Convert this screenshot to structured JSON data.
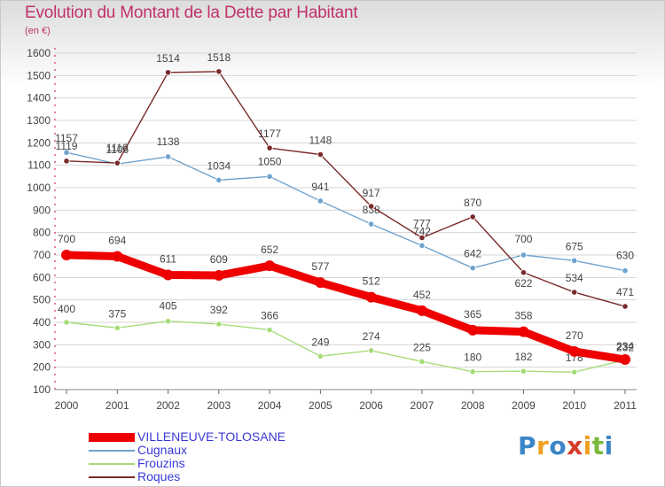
{
  "header": {
    "title": "Evolution du Montant de la Dette par Habitant",
    "subtitle": "(en €)"
  },
  "logo": {
    "letters": [
      "P",
      "r",
      "o",
      "x",
      "i",
      "t",
      "i"
    ],
    "colors": [
      "#3b86c8",
      "#f0a020",
      "#3b86c8",
      "#d63a2a",
      "#f0a020",
      "#78b83a",
      "#3b86c8"
    ]
  },
  "chart_data": {
    "type": "line",
    "x": [
      "2000",
      "2001",
      "2002",
      "2003",
      "2004",
      "2005",
      "2006",
      "2007",
      "2008",
      "2009",
      "2010",
      "2011"
    ],
    "y_ticks": [
      "100",
      "200",
      "300",
      "400",
      "500",
      "600",
      "700",
      "800",
      "900",
      "1000",
      "1100",
      "1200",
      "1300",
      "1400",
      "1500",
      "1600"
    ],
    "ylim": [
      100,
      1600
    ],
    "grid": "horizontal",
    "legend_position": "bottom-left",
    "series": [
      {
        "name": "Cugnaux",
        "values": [
          1157,
          1106,
          1138,
          1034,
          1050,
          941,
          838,
          742,
          642,
          700,
          675,
          630
        ],
        "labels": [
          "1157",
          "1106",
          "1138",
          "1034",
          "1050",
          "941",
          "838",
          "742",
          "642",
          "700",
          "675",
          "630"
        ],
        "color": "#6fa3cf"
      },
      {
        "name": "Roques",
        "values": [
          1119,
          1110,
          1514,
          1518,
          1177,
          1148,
          917,
          777,
          870,
          622,
          534,
          471
        ],
        "labels": [
          "1119",
          "1110",
          "1514",
          "1518",
          "1177",
          "1148",
          "917",
          "777",
          "870",
          "622",
          "534",
          "471"
        ],
        "color": "#7a2a2a"
      },
      {
        "name": "Frouzins",
        "values": [
          400,
          375,
          405,
          392,
          366,
          249,
          274,
          225,
          180,
          182,
          178,
          232
        ],
        "labels": [
          "400",
          "375",
          "405",
          "392",
          "366",
          "249",
          "274",
          "225",
          "180",
          "182",
          "178",
          "232"
        ],
        "color": "#a6dc78"
      },
      {
        "name": "VILLENEUVE-TOLOSANE",
        "values": [
          700,
          694,
          611,
          609,
          652,
          577,
          512,
          452,
          365,
          358,
          270,
          234
        ],
        "labels": [
          "700",
          "694",
          "611",
          "609",
          "652",
          "577",
          "512",
          "452",
          "365",
          "358",
          "270",
          "234"
        ],
        "color": "#ee0000"
      }
    ],
    "legend": [
      {
        "name": "VILLENEUVE-TOLOSANE",
        "color": "#ee0000"
      },
      {
        "name": "Cugnaux",
        "color": "#6fa3cf"
      },
      {
        "name": "Frouzins",
        "color": "#a6dc78"
      },
      {
        "name": "Roques",
        "color": "#7a2a2a"
      }
    ]
  }
}
